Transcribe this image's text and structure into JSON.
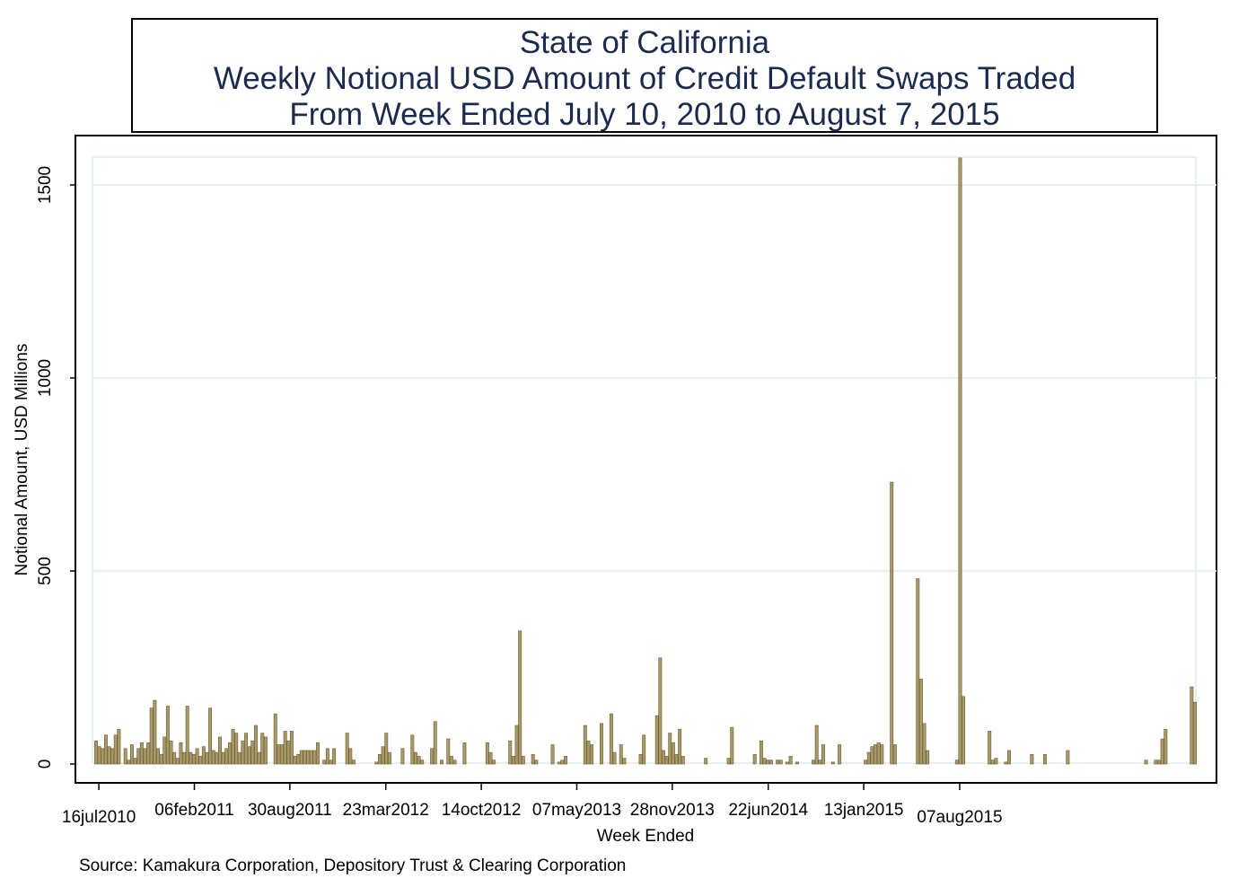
{
  "title": {
    "line1": "State of California",
    "line2": "Weekly Notional USD Amount of Credit Default Swaps Traded",
    "line3": "From Week Ended July 10, 2010 to August 7, 2015"
  },
  "source": "Source: Kamakura Corporation, Depository Trust & Clearing Corporation",
  "colors": {
    "bar_fill": "#a8986a",
    "bar_stroke": "#6b5c2e",
    "grid": "#e6eef2",
    "title_text": "#1a2b4f"
  },
  "chart_data": {
    "type": "bar",
    "title": "State of California Weekly Notional USD Amount of Credit Default Swaps Traded From Week Ended July 10, 2010 to August 7, 2015",
    "xlabel": "Week Ended",
    "ylabel": "Notional Amount, USD Millions",
    "ylim": [
      -50,
      1580
    ],
    "yticks": [
      0,
      500,
      1000,
      1500
    ],
    "xticks": [
      "16jul2010",
      "06feb2011",
      "30aug2011",
      "23mar2012",
      "14oct2012",
      "07may2013",
      "28nov2013",
      "22jun2014",
      "13jan2015",
      "07aug2015"
    ],
    "grid": true,
    "x_start_date": "2010-07-10",
    "x_interval_days": 7,
    "values": [
      60,
      45,
      40,
      75,
      45,
      40,
      75,
      90,
      0,
      40,
      10,
      50,
      15,
      40,
      55,
      40,
      55,
      145,
      165,
      40,
      25,
      70,
      150,
      60,
      30,
      15,
      55,
      30,
      150,
      30,
      25,
      40,
      20,
      45,
      30,
      145,
      35,
      30,
      70,
      30,
      40,
      55,
      90,
      80,
      30,
      60,
      80,
      45,
      60,
      100,
      30,
      80,
      70,
      0,
      0,
      130,
      50,
      50,
      85,
      60,
      85,
      20,
      25,
      35,
      35,
      35,
      35,
      35,
      55,
      0,
      10,
      40,
      10,
      40,
      0,
      0,
      0,
      80,
      40,
      10,
      0,
      0,
      0,
      0,
      0,
      0,
      5,
      25,
      45,
      80,
      30,
      0,
      0,
      0,
      40,
      0,
      0,
      75,
      30,
      20,
      10,
      0,
      0,
      40,
      110,
      0,
      10,
      0,
      65,
      20,
      10,
      0,
      0,
      55,
      0,
      0,
      0,
      0,
      0,
      0,
      55,
      30,
      10,
      0,
      0,
      0,
      0,
      60,
      20,
      100,
      345,
      20,
      0,
      0,
      25,
      10,
      0,
      0,
      0,
      0,
      50,
      0,
      5,
      10,
      20,
      0,
      0,
      0,
      0,
      0,
      100,
      60,
      50,
      0,
      0,
      105,
      0,
      0,
      130,
      30,
      0,
      50,
      15,
      0,
      0,
      0,
      0,
      25,
      75,
      0,
      0,
      0,
      125,
      275,
      35,
      20,
      80,
      55,
      25,
      90,
      20,
      0,
      0,
      0,
      0,
      0,
      0,
      15,
      0,
      0,
      0,
      0,
      0,
      0,
      15,
      95,
      0,
      0,
      0,
      0,
      0,
      0,
      25,
      0,
      60,
      15,
      10,
      10,
      0,
      10,
      10,
      0,
      5,
      20,
      0,
      5,
      0,
      0,
      0,
      0,
      10,
      100,
      10,
      50,
      0,
      0,
      5,
      0,
      50,
      0,
      0,
      0,
      0,
      0,
      0,
      0,
      10,
      30,
      45,
      50,
      55,
      50,
      0,
      0,
      730,
      50,
      0,
      0,
      0,
      0,
      0,
      0,
      480,
      220,
      105,
      35,
      0,
      0,
      0,
      0,
      0,
      0,
      0,
      0,
      10,
      1570,
      175,
      0,
      0,
      0,
      0,
      0,
      0,
      0,
      85,
      10,
      15,
      0,
      0,
      5,
      35,
      0,
      0,
      0,
      0,
      0,
      0,
      25,
      0,
      0,
      0,
      25,
      0,
      0,
      0,
      0,
      0,
      0,
      35,
      0,
      0,
      0,
      0,
      0,
      0,
      0,
      0,
      0,
      0,
      0,
      0,
      0,
      0,
      0,
      0,
      0,
      0,
      0,
      0,
      0,
      0,
      0,
      10,
      0,
      0,
      10,
      10,
      65,
      90,
      0,
      0,
      0,
      0,
      0,
      0,
      0,
      200,
      160
    ]
  }
}
